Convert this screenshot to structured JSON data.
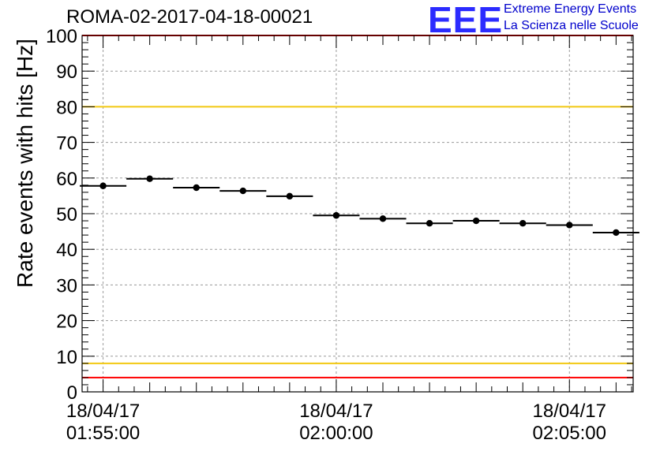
{
  "header": {
    "title": "ROMA-02-2017-04-18-00021",
    "logo_text": "EEE",
    "logo_line1": "Extreme Energy Events",
    "logo_line2": "La Scienza nelle Scuole"
  },
  "chart_data": {
    "type": "scatter",
    "title": "ROMA-02-2017-04-18-00021",
    "xlabel": "",
    "ylabel": "Rate events with hits [Hz]",
    "xlim": [
      "18/04/17 01:54:33",
      "18/04/17 02:06:22"
    ],
    "ylim": [
      0,
      100
    ],
    "yticks": [
      0,
      10,
      20,
      30,
      40,
      50,
      60,
      70,
      80,
      90,
      100
    ],
    "xticks": [
      {
        "value": "18/04/17 01:55:00",
        "line1": "18/04/17",
        "line2": "01:55:00"
      },
      {
        "value": "18/04/17 02:00:00",
        "line1": "18/04/17",
        "line2": "02:00:00"
      },
      {
        "value": "18/04/17 02:05:00",
        "line1": "18/04/17",
        "line2": "02:05:00"
      }
    ],
    "grid": true,
    "bin_width_seconds": 60,
    "series": [
      {
        "x": [
          "01:55:00",
          "01:56:00",
          "01:57:00",
          "01:58:00",
          "01:59:00",
          "02:00:00",
          "02:01:00",
          "02:02:00",
          "02:03:00",
          "02:04:00",
          "02:05:00",
          "02:06:00"
        ],
        "values": [
          57.8,
          59.8,
          57.3,
          56.4,
          54.9,
          49.5,
          48.6,
          47.3,
          48.0,
          47.3,
          46.8,
          44.7
        ],
        "color": "#000000"
      }
    ],
    "reference_lines": [
      {
        "y": 80,
        "color": "#f2c811"
      },
      {
        "y": 8,
        "color": "#f2c811"
      },
      {
        "y": 4,
        "color": "#ff0000"
      },
      {
        "y": 100,
        "color": "#ff0000"
      }
    ]
  }
}
